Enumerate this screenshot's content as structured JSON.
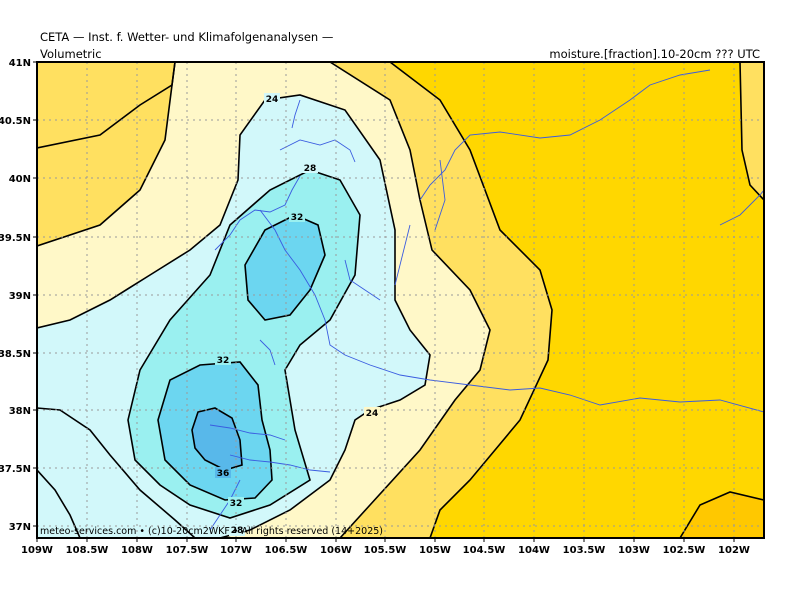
{
  "header": {
    "title": "CETA — Inst. f. Wetter- und Klimafolgenanalysen —",
    "subtitle_left": "Volumetric",
    "subtitle_right": "moisture.[fraction].10-20cm ??? UTC"
  },
  "footer": {
    "credit": "meteo-services.com • (c)10-20cm2WKF • All rights reserved (14+2025)"
  },
  "axes": {
    "lat_labels": [
      "41N",
      "40.5N",
      "40N",
      "39.5N",
      "39N",
      "38.5N",
      "38N",
      "37.5N",
      "37N"
    ],
    "lon_labels": [
      "109W",
      "108.5W",
      "108W",
      "107.5W",
      "107W",
      "106.5W",
      "106W",
      "105.5W",
      "105W",
      "104.5W",
      "104W",
      "103.5W",
      "103W",
      "102.5W",
      "102W"
    ]
  },
  "contour_labels": {
    "c24_top": "24",
    "c24_right": "24",
    "c28_top": "28",
    "c28_bottom": "28",
    "c32_upper": "32",
    "c32_lower": "32",
    "c32_bottom": "32",
    "c36": "36"
  },
  "colors": {
    "band_lt20": "#ffd700",
    "band_20_22": "#ffe060",
    "band_22_24": "#fff8c8",
    "band_24_28": "#d2f8fa",
    "band_28_32": "#9af0f0",
    "band_32_36": "#6cd6f0",
    "band_gt36": "#58b8ea",
    "band_low": "#ffc800",
    "rivers": "#3a5ce0",
    "grid": "#9a9a9a"
  }
}
